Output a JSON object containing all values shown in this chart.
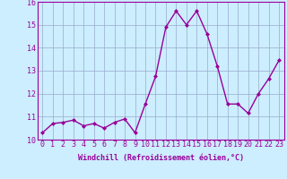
{
  "x": [
    0,
    1,
    2,
    3,
    4,
    5,
    6,
    7,
    8,
    9,
    10,
    11,
    12,
    13,
    14,
    15,
    16,
    17,
    18,
    19,
    20,
    21,
    22,
    23
  ],
  "y": [
    10.3,
    10.7,
    10.75,
    10.85,
    10.6,
    10.7,
    10.5,
    10.75,
    10.9,
    10.3,
    11.55,
    12.75,
    14.9,
    15.6,
    15.0,
    15.6,
    14.6,
    13.2,
    11.55,
    11.55,
    11.15,
    12.0,
    12.65,
    13.45
  ],
  "line_color": "#990099",
  "marker": "D",
  "marker_size": 2.0,
  "bg_color": "#cceeff",
  "grid_color": "#99aacc",
  "xlabel": "Windchill (Refroidissement éolien,°C)",
  "ylim": [
    10,
    16
  ],
  "xlim": [
    -0.5,
    23.5
  ],
  "yticks": [
    10,
    11,
    12,
    13,
    14,
    15,
    16
  ],
  "xticks": [
    0,
    1,
    2,
    3,
    4,
    5,
    6,
    7,
    8,
    9,
    10,
    11,
    12,
    13,
    14,
    15,
    16,
    17,
    18,
    19,
    20,
    21,
    22,
    23
  ],
  "xlabel_fontsize": 6.0,
  "tick_fontsize": 6.0,
  "line_width": 1.0
}
